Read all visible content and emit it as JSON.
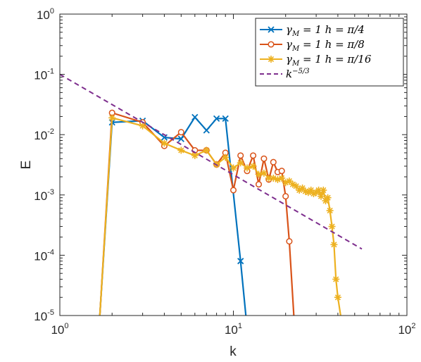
{
  "chart_data": {
    "type": "line",
    "xlabel": "k",
    "ylabel": "E",
    "xscale": "log",
    "yscale": "log",
    "xlim": [
      1,
      100
    ],
    "ylim": [
      1e-05,
      1
    ],
    "grid": false,
    "legend_position": "top-right",
    "x_ticks": [
      {
        "base": "10",
        "exp": "0",
        "value": 1
      },
      {
        "base": "10",
        "exp": "1",
        "value": 10
      },
      {
        "base": "10",
        "exp": "2",
        "value": 100
      }
    ],
    "y_ticks": [
      {
        "base": "10",
        "exp": "0",
        "value": 1
      },
      {
        "base": "10",
        "exp": "-1",
        "value": 0.1
      },
      {
        "base": "10",
        "exp": "-2",
        "value": 0.01
      },
      {
        "base": "10",
        "exp": "-3",
        "value": 0.001
      },
      {
        "base": "10",
        "exp": "-4",
        "value": 0.0001
      },
      {
        "base": "10",
        "exp": "-5",
        "value": 1e-05
      }
    ],
    "series": [
      {
        "legend": {
          "gamma": "γ",
          "sub": "M",
          "rest": " = 1  h = π/4"
        },
        "color": "#0072BD",
        "marker": "x",
        "x": [
          1.7,
          2,
          3,
          4,
          5,
          6,
          7,
          8,
          9,
          11,
          11.8
        ],
        "y": [
          1e-05,
          0.016,
          0.017,
          0.009,
          0.0085,
          0.0195,
          0.0118,
          0.0185,
          0.0185,
          8e-05,
          1e-05
        ]
      },
      {
        "legend": {
          "gamma": "γ",
          "sub": "M",
          "rest": " = 1  h = π/8"
        },
        "color": "#D95319",
        "marker": "o",
        "x": [
          1.7,
          2,
          3,
          4,
          5,
          6,
          7,
          8,
          9,
          10,
          11,
          12,
          13,
          14,
          15,
          16,
          17,
          18,
          19,
          20,
          21,
          22.3
        ],
        "y": [
          1e-05,
          0.023,
          0.016,
          0.0065,
          0.011,
          0.0055,
          0.0055,
          0.0032,
          0.005,
          0.0012,
          0.0045,
          0.0025,
          0.0045,
          0.0015,
          0.004,
          0.0018,
          0.0035,
          0.0024,
          0.0025,
          0.00095,
          0.00017,
          1e-05
        ]
      },
      {
        "legend": {
          "gamma": "γ",
          "sub": "M",
          "rest": " = 1  h = π/16"
        },
        "color": "#EDB120",
        "marker": "*",
        "x": [
          1.7,
          2,
          3,
          4,
          5,
          6,
          7,
          8,
          9,
          10,
          11,
          12,
          13,
          14,
          15,
          16,
          17,
          18,
          19,
          20,
          21,
          22,
          23,
          24,
          25,
          26,
          27,
          28,
          29,
          30,
          31,
          32,
          33,
          34,
          35,
          36,
          37,
          38,
          39,
          40,
          41.5
        ],
        "y": [
          1e-05,
          0.019,
          0.014,
          0.0072,
          0.0055,
          0.0045,
          0.0055,
          0.0032,
          0.0042,
          0.0028,
          0.0034,
          0.0028,
          0.003,
          0.0022,
          0.0023,
          0.0019,
          0.0019,
          0.0018,
          0.0019,
          0.0016,
          0.0017,
          0.0015,
          0.0014,
          0.0012,
          0.0013,
          0.00115,
          0.0011,
          0.0012,
          0.00105,
          0.0011,
          0.0012,
          0.00095,
          0.0012,
          0.0008,
          0.0009,
          0.00055,
          0.0003,
          0.00015,
          4e-05,
          2e-05,
          1e-05
        ]
      },
      {
        "legend": {
          "base": "k",
          "exp": "−5/3"
        },
        "color": "#7E2F8E",
        "marker": "none",
        "dashed": true,
        "x": [
          1,
          55
        ],
        "y": [
          0.1,
          0.000127
        ]
      }
    ]
  }
}
